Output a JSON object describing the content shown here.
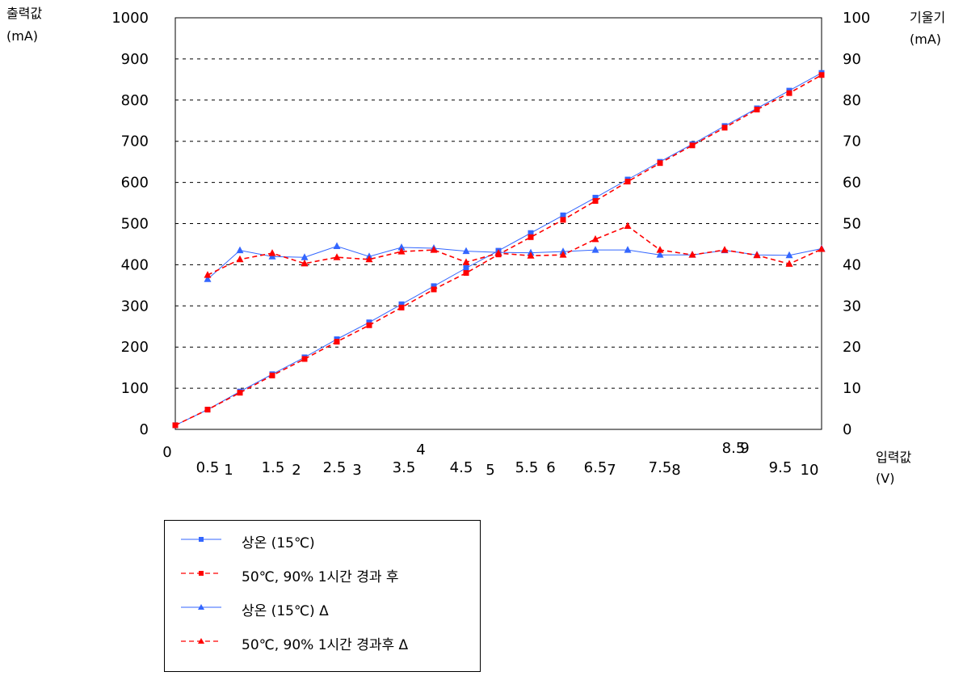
{
  "chart_data": {
    "type": "line",
    "y_axis_left": {
      "title_line1": "출력값",
      "title_line2": "(mA)",
      "min": 0,
      "max": 1000,
      "ticks": [
        0,
        100,
        200,
        300,
        400,
        500,
        600,
        700,
        800,
        900,
        1000
      ]
    },
    "y_axis_right": {
      "title_line1": "기울기",
      "title_line2": "(mA)",
      "min": 0,
      "max": 100,
      "ticks": [
        0,
        10,
        20,
        30,
        40,
        50,
        60,
        70,
        80,
        90,
        100
      ]
    },
    "x_axis": {
      "title_line1": "입력값",
      "title_line2": "(V)"
    },
    "x_tick_labels": [
      "0",
      "0.5",
      "1",
      "1.5",
      "2",
      "2.5",
      "3",
      "3.5",
      "4",
      "4.5",
      "5",
      "5.5",
      "6",
      "6.5",
      "7",
      "7.5",
      "8",
      "8.5",
      "9",
      "9.5",
      "10"
    ],
    "grid": "horizontal dashed",
    "legend_position": "bottom-left",
    "series": [
      {
        "name": "상온 (15℃)",
        "axis": "left",
        "color": "#3366ff",
        "dash": "solid",
        "marker": "square",
        "x": [
          0,
          0.5,
          1,
          1.5,
          2,
          2.5,
          3,
          3.5,
          4,
          4.5,
          5,
          5.5,
          6,
          6.5,
          7,
          7.5,
          8,
          8.5,
          9,
          9.5,
          10
        ],
        "values": [
          10,
          48,
          92,
          134,
          175,
          219,
          260,
          304,
          348,
          392,
          434,
          477,
          520,
          563,
          607,
          650,
          693,
          737,
          780,
          823,
          866
        ]
      },
      {
        "name": "50℃, 90% 1시간 경과 후",
        "axis": "left",
        "color": "#ff0000",
        "dash": "dashed",
        "marker": "square",
        "x": [
          0,
          0.5,
          1,
          1.5,
          2,
          2.5,
          3,
          3.5,
          4,
          4.5,
          5,
          5.5,
          6,
          6.5,
          7,
          7.5,
          8,
          8.5,
          9,
          9.5,
          10
        ],
        "values": [
          10,
          48,
          89,
          131,
          171,
          213,
          253,
          296,
          340,
          380,
          425,
          467,
          509,
          555,
          602,
          647,
          690,
          733,
          777,
          817,
          861
        ]
      },
      {
        "name": "상온 (15℃) Δ",
        "axis": "right",
        "color": "#3366ff",
        "dash": "solid",
        "marker": "triangle",
        "x": [
          0.5,
          1,
          1.5,
          2,
          2.5,
          3,
          3.5,
          4,
          4.5,
          5,
          5.5,
          6,
          6.5,
          7,
          7.5,
          8,
          8.5,
          9,
          9.5,
          10
        ],
        "values": [
          36.5,
          43.5,
          42,
          41.8,
          44.5,
          42,
          44.2,
          44,
          43.3,
          43,
          42.9,
          43.2,
          43.6,
          43.6,
          42.4,
          42.4,
          43.5,
          42.4,
          42.3,
          43.9
        ]
      },
      {
        "name": "50℃, 90% 1시간 경과후 Δ",
        "axis": "right",
        "color": "#ff0000",
        "dash": "dashed",
        "marker": "triangle",
        "x": [
          0.5,
          1,
          1.5,
          2,
          2.5,
          3,
          3.5,
          4,
          4.5,
          5,
          5.5,
          6,
          6.5,
          7,
          7.5,
          8,
          8.5,
          9,
          9.5,
          10
        ],
        "values": [
          37.5,
          41.3,
          42.8,
          40.3,
          41.8,
          41.3,
          43.2,
          43.6,
          40.6,
          42.8,
          42.2,
          42.4,
          46.2,
          49.4,
          43.6,
          42.4,
          43.6,
          42.3,
          40.2,
          43.8
        ]
      }
    ]
  }
}
